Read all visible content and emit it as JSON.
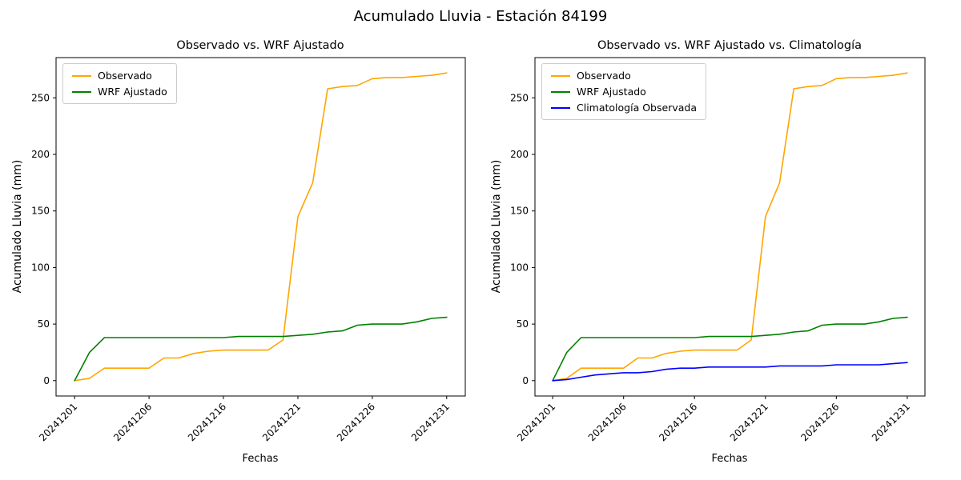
{
  "figure": {
    "title": "Acumulado Lluvia - Estación 84199"
  },
  "colors": {
    "observado": "#FFA500",
    "wrf_ajustado": "#008000",
    "climatologia": "#0000FF",
    "axis": "#000000",
    "legend_border": "#CCCCCC"
  },
  "chart_data": [
    {
      "type": "line",
      "title": "Observado vs. WRF Ajustado",
      "xlabel": "Fechas",
      "ylabel": "Acumulado Lluvia (mm)",
      "x": [
        "20241201",
        "20241202",
        "20241203",
        "20241204",
        "20241205",
        "20241206",
        "20241207",
        "20241208",
        "20241214",
        "20241215",
        "20241216",
        "20241217",
        "20241218",
        "20241219",
        "20241220",
        "20241221",
        "20241222",
        "20241223",
        "20241224",
        "20241225",
        "20241226",
        "20241227",
        "20241228",
        "20241229",
        "20241230",
        "20241231"
      ],
      "x_tick_labels": [
        "20241201",
        "20241206",
        "20241216",
        "20241221",
        "20241226",
        "20241231"
      ],
      "y_ticks": [
        0,
        50,
        100,
        150,
        200,
        250
      ],
      "ylim": [
        -13.6,
        285.6
      ],
      "grid": false,
      "legend_position": "upper left",
      "series": [
        {
          "name": "Observado",
          "color": "#FFA500",
          "values": [
            0,
            2,
            11,
            11,
            11,
            11,
            20,
            20,
            24,
            26,
            27,
            27,
            27,
            27,
            36,
            145,
            175,
            258,
            260,
            261,
            267,
            268,
            268,
            269,
            270,
            272
          ]
        },
        {
          "name": "WRF Ajustado",
          "color": "#008000",
          "values": [
            0,
            25,
            38,
            38,
            38,
            38,
            38,
            38,
            38,
            38,
            38,
            39,
            39,
            39,
            39,
            40,
            41,
            43,
            44,
            49,
            50,
            50,
            50,
            52,
            55,
            56
          ]
        }
      ]
    },
    {
      "type": "line",
      "title": "Observado vs. WRF Ajustado vs. Climatología",
      "xlabel": "Fechas",
      "ylabel": "Acumulado Lluvia (mm)",
      "x": [
        "20241201",
        "20241202",
        "20241203",
        "20241204",
        "20241205",
        "20241206",
        "20241207",
        "20241208",
        "20241214",
        "20241215",
        "20241216",
        "20241217",
        "20241218",
        "20241219",
        "20241220",
        "20241221",
        "20241222",
        "20241223",
        "20241224",
        "20241225",
        "20241226",
        "20241227",
        "20241228",
        "20241229",
        "20241230",
        "20241231"
      ],
      "x_tick_labels": [
        "20241201",
        "20241206",
        "20241216",
        "20241221",
        "20241226",
        "20241231"
      ],
      "y_ticks": [
        0,
        50,
        100,
        150,
        200,
        250
      ],
      "ylim": [
        -13.6,
        285.6
      ],
      "grid": false,
      "legend_position": "upper left",
      "series": [
        {
          "name": "Observado",
          "color": "#FFA500",
          "values": [
            0,
            2,
            11,
            11,
            11,
            11,
            20,
            20,
            24,
            26,
            27,
            27,
            27,
            27,
            36,
            145,
            175,
            258,
            260,
            261,
            267,
            268,
            268,
            269,
            270,
            272
          ]
        },
        {
          "name": "WRF Ajustado",
          "color": "#008000",
          "values": [
            0,
            25,
            38,
            38,
            38,
            38,
            38,
            38,
            38,
            38,
            38,
            39,
            39,
            39,
            39,
            40,
            41,
            43,
            44,
            49,
            50,
            50,
            50,
            52,
            55,
            56
          ]
        },
        {
          "name": "Climatología Observada",
          "color": "#0000FF",
          "values": [
            0,
            1,
            3,
            5,
            6,
            7,
            7,
            8,
            10,
            11,
            11,
            12,
            12,
            12,
            12,
            12,
            13,
            13,
            13,
            13,
            14,
            14,
            14,
            14,
            15,
            16
          ]
        }
      ]
    }
  ]
}
